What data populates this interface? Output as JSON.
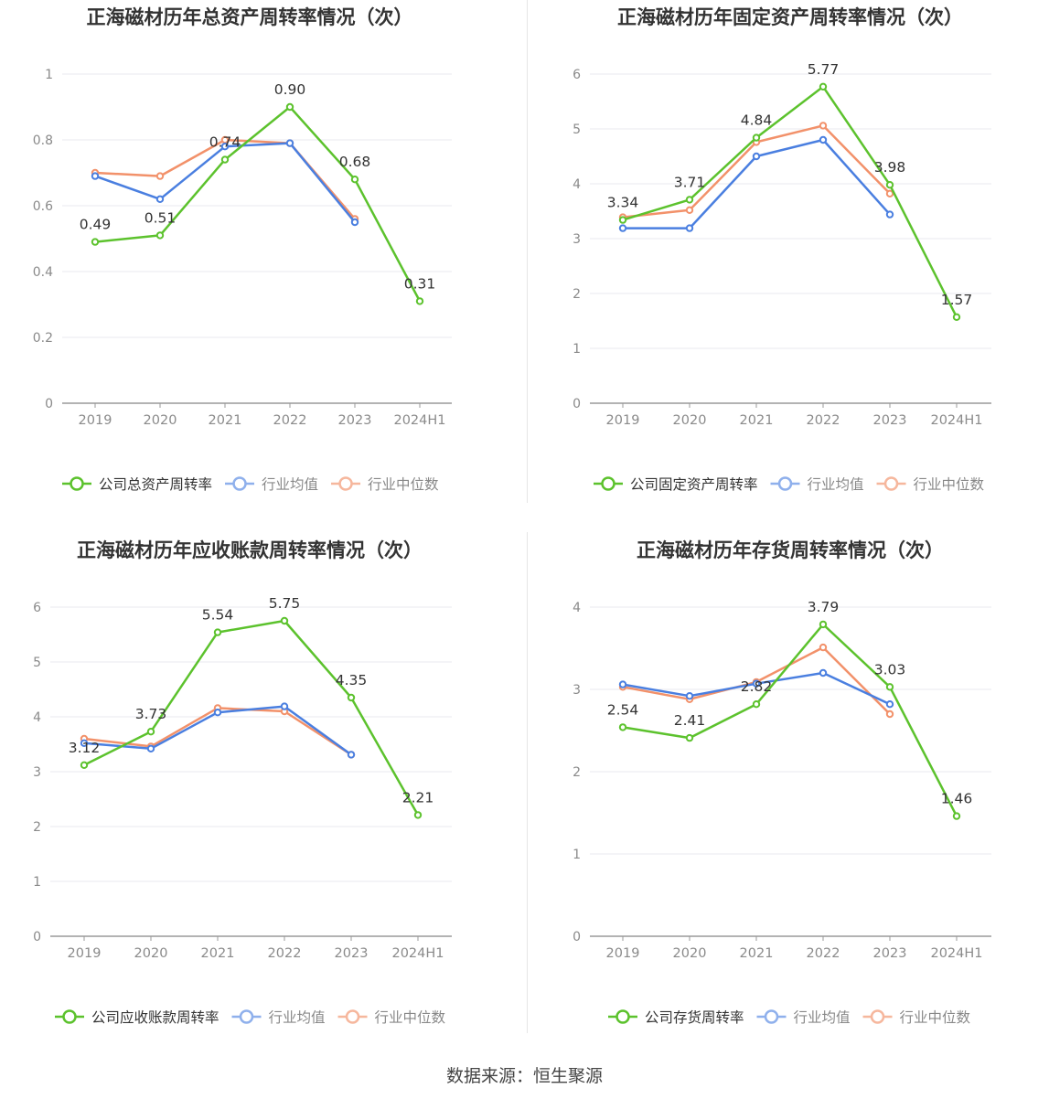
{
  "colors": {
    "company": "#5CC22D",
    "avg": "#4A7FE0",
    "median": "#F2916A",
    "axis": "#8a8a8a",
    "grid": "#e8e9ef",
    "title": "#333333"
  },
  "footer": "数据来源：恒生聚源",
  "chart_data": [
    {
      "type": "line",
      "title": "正海磁材历年总资产周转率情况（次）",
      "categories": [
        "2019",
        "2020",
        "2021",
        "2022",
        "2023",
        "2024H1"
      ],
      "ylim": [
        0,
        1
      ],
      "yticks": [
        "0",
        "0.2",
        "0.4",
        "0.6",
        "0.8",
        "1"
      ],
      "legend_position": "bottom",
      "series": [
        {
          "name": "公司总资产周转率",
          "role": "company",
          "values": [
            0.49,
            0.51,
            0.74,
            0.9,
            0.68,
            0.31
          ],
          "labels": [
            "0.49",
            "0.51",
            "0.74",
            "0.90",
            "0.68",
            "0.31"
          ]
        },
        {
          "name": "行业均值",
          "role": "avg",
          "values": [
            0.69,
            0.62,
            0.78,
            0.79,
            0.55,
            null
          ]
        },
        {
          "name": "行业中位数",
          "role": "median",
          "values": [
            0.7,
            0.69,
            0.8,
            0.79,
            0.56,
            null
          ]
        }
      ]
    },
    {
      "type": "line",
      "title": "正海磁材历年固定资产周转率情况（次）",
      "categories": [
        "2019",
        "2020",
        "2021",
        "2022",
        "2023",
        "2024H1"
      ],
      "ylim": [
        0,
        6
      ],
      "yticks": [
        "0",
        "1",
        "2",
        "3",
        "4",
        "5",
        "6"
      ],
      "legend_position": "bottom",
      "series": [
        {
          "name": "公司固定资产周转率",
          "role": "company",
          "values": [
            3.34,
            3.71,
            4.84,
            5.77,
            3.98,
            1.57
          ],
          "labels": [
            "3.34",
            "3.71",
            "4.84",
            "5.77",
            "3.98",
            "1.57"
          ]
        },
        {
          "name": "行业均值",
          "role": "avg",
          "values": [
            3.19,
            3.19,
            4.5,
            4.8,
            3.44,
            null
          ]
        },
        {
          "name": "行业中位数",
          "role": "median",
          "values": [
            3.39,
            3.52,
            4.76,
            5.06,
            3.82,
            null
          ]
        }
      ]
    },
    {
      "type": "line",
      "title": "正海磁材历年应收账款周转率情况（次）",
      "categories": [
        "2019",
        "2020",
        "2021",
        "2022",
        "2023",
        "2024H1"
      ],
      "ylim": [
        0,
        6
      ],
      "yticks": [
        "0",
        "1",
        "2",
        "3",
        "4",
        "5",
        "6"
      ],
      "legend_position": "bottom",
      "series": [
        {
          "name": "公司应收账款周转率",
          "role": "company",
          "values": [
            3.12,
            3.73,
            5.54,
            5.75,
            4.35,
            2.21
          ],
          "labels": [
            "3.12",
            "3.73",
            "5.54",
            "5.75",
            "4.35",
            "2.21"
          ]
        },
        {
          "name": "行业均值",
          "role": "avg",
          "values": [
            3.52,
            3.42,
            4.08,
            4.19,
            3.31,
            null
          ]
        },
        {
          "name": "行业中位数",
          "role": "median",
          "values": [
            3.6,
            3.46,
            4.16,
            4.1,
            3.31,
            null
          ]
        }
      ]
    },
    {
      "type": "line",
      "title": "正海磁材历年存货周转率情况（次）",
      "categories": [
        "2019",
        "2020",
        "2021",
        "2022",
        "2023",
        "2024H1"
      ],
      "ylim": [
        0,
        4
      ],
      "yticks": [
        "0",
        "1",
        "2",
        "3",
        "4"
      ],
      "legend_position": "bottom",
      "series": [
        {
          "name": "公司存货周转率",
          "role": "company",
          "values": [
            2.54,
            2.41,
            2.82,
            3.79,
            3.03,
            1.46
          ],
          "labels": [
            "2.54",
            "2.41",
            "2.82",
            "3.79",
            "3.03",
            "1.46"
          ]
        },
        {
          "name": "行业均值",
          "role": "avg",
          "values": [
            3.06,
            2.92,
            3.07,
            3.2,
            2.82,
            null
          ]
        },
        {
          "name": "行业中位数",
          "role": "median",
          "values": [
            3.03,
            2.88,
            3.09,
            3.51,
            2.7,
            null
          ]
        }
      ]
    }
  ]
}
